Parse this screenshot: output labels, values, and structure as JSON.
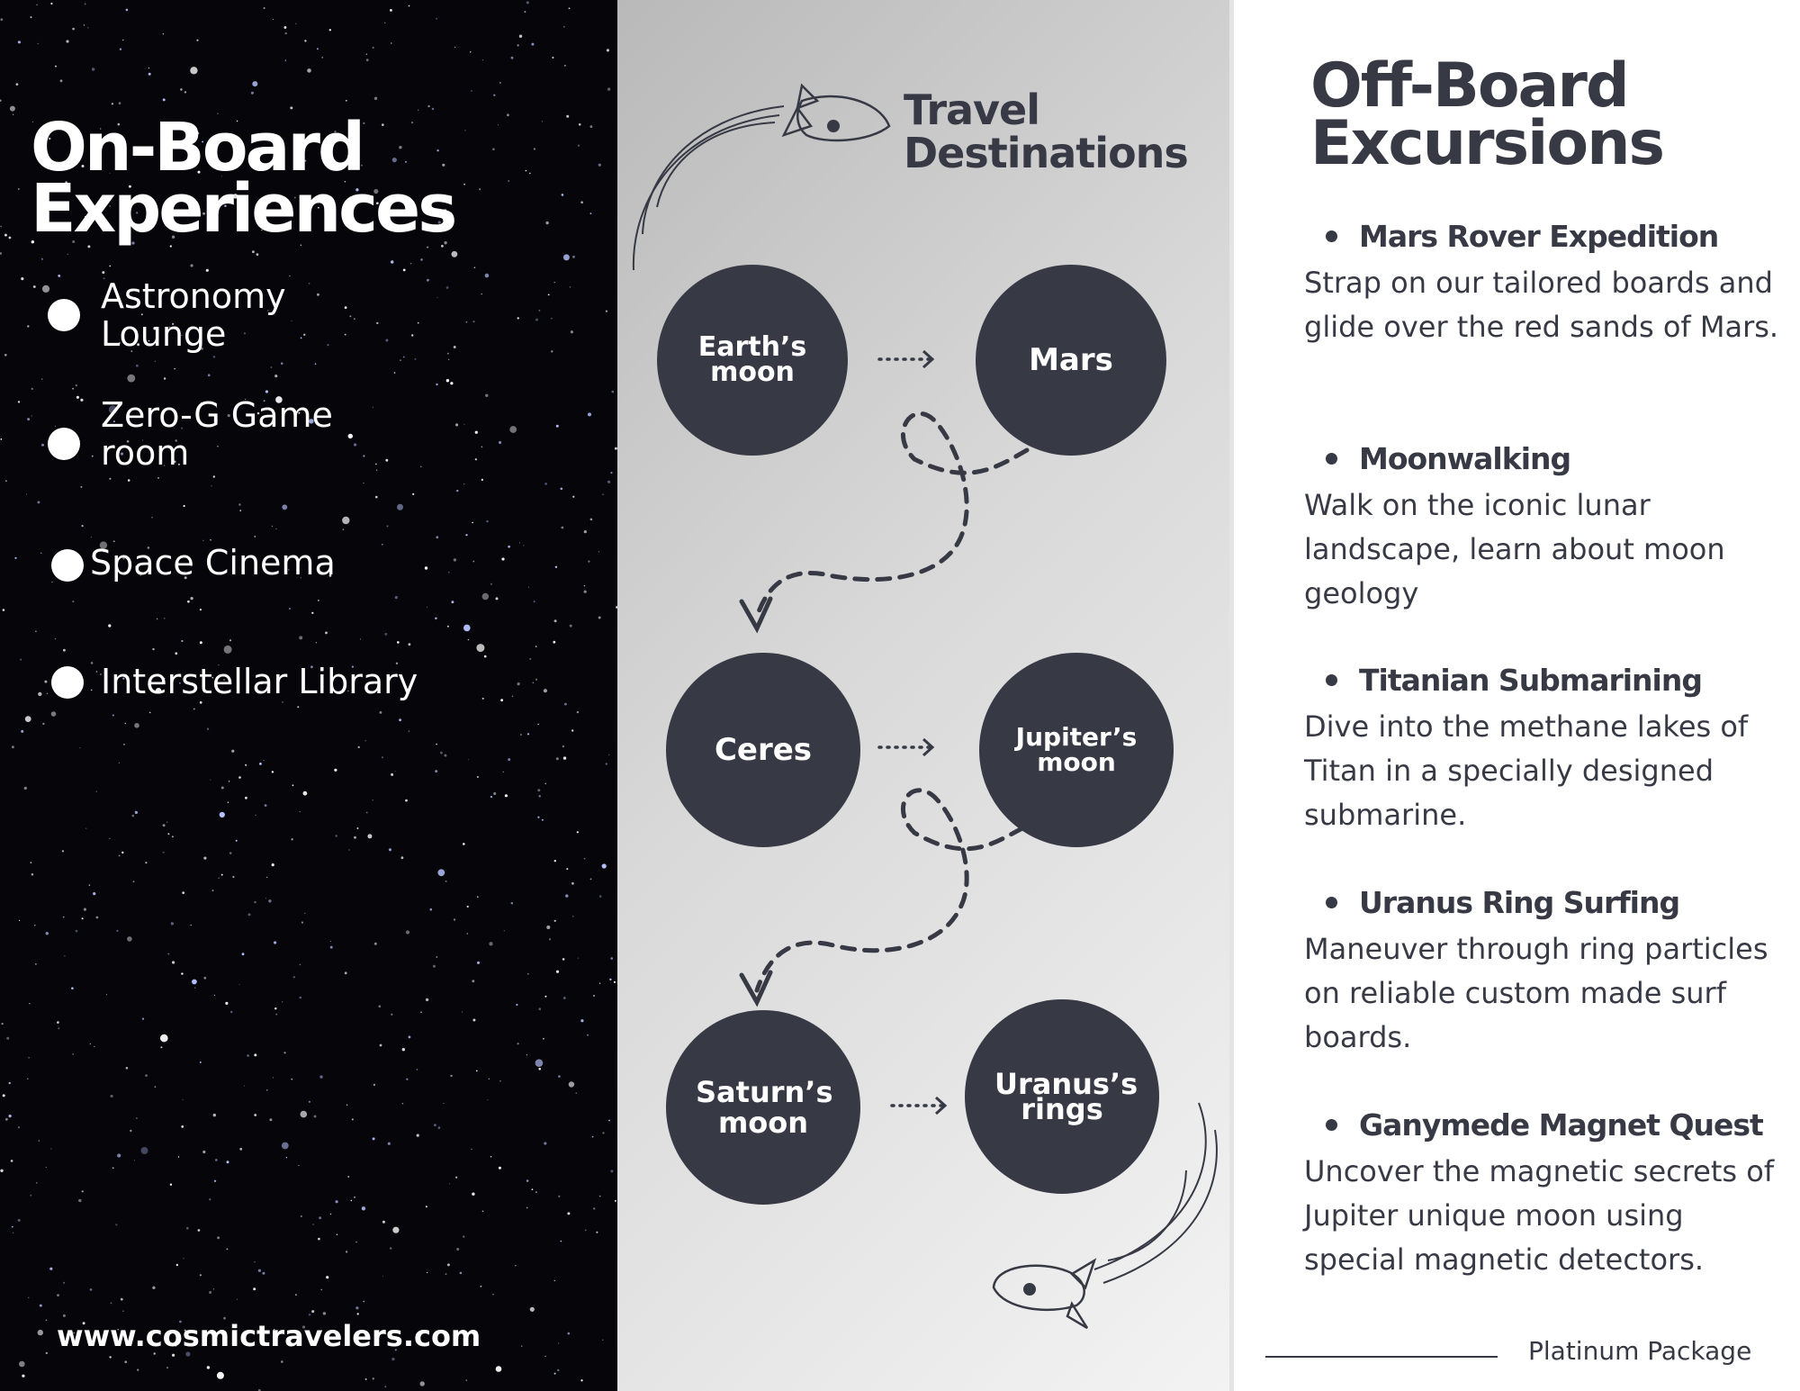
{
  "onboard": {
    "title": "On-Board Experiences",
    "items": [
      "Astronomy Lounge",
      "Zero-G Game room",
      "Space Cinema",
      "Interstellar Library"
    ],
    "website": "www.cosmictravelers.com"
  },
  "destinations": {
    "title": "Travel Destinations",
    "stops": [
      "Earth’s moon",
      "Mars",
      "Ceres",
      "Jupiter’s moon",
      "Saturn’s moon",
      "Uranus’s rings"
    ]
  },
  "offboard": {
    "title": "Off-Board Excursions",
    "excursions": [
      {
        "name": "Mars Rover Expedition",
        "description": "Strap on our tailored boards and glide over the red sands of Mars."
      },
      {
        "name": "Moonwalking",
        "description": "Walk on the iconic lunar landscape, learn about moon geology"
      },
      {
        "name": "Titanian Submarining",
        "description": "Dive into the methane lakes of Titan in a specially designed submarine."
      },
      {
        "name": "Uranus Ring Surfing",
        "description": "Maneuver through ring particles on reliable custom made surf boards."
      },
      {
        "name": "Ganymede Magnet Quest",
        "description": "Uncover the magnetic secrets of Jupiter unique moon using special magnetic detectors."
      }
    ],
    "package": "Platinum Package"
  },
  "colors": {
    "dark": "#373a45",
    "space": "#05050a",
    "text_light": "#ffffff"
  },
  "icons": [
    "rocket-icon",
    "rocket-icon",
    "dotted-arrow-icon",
    "dashed-loop-arrow-icon"
  ]
}
